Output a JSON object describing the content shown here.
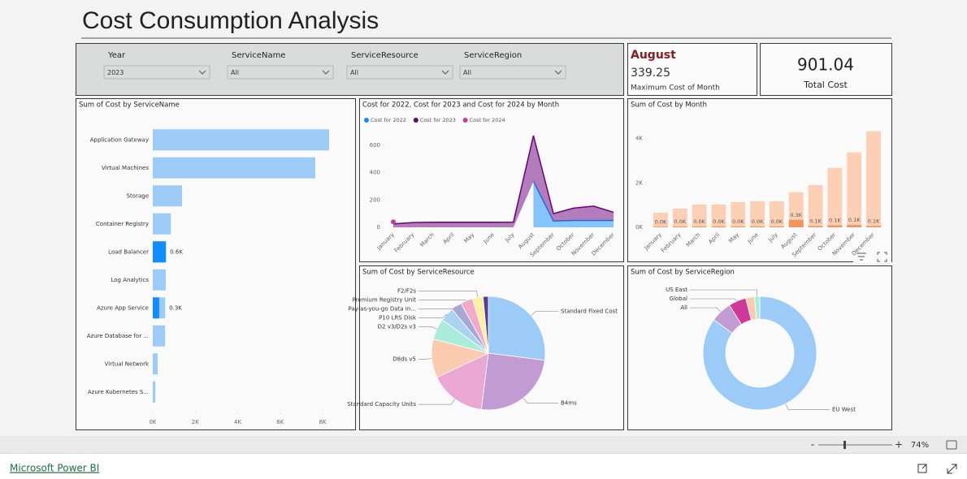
{
  "header": {
    "title": "Cost Consumption Analysis"
  },
  "slicers": [
    {
      "label": "Year",
      "value": "2023"
    },
    {
      "label": "ServiceName",
      "value": "All"
    },
    {
      "label": "ServiceResource",
      "value": "All"
    },
    {
      "label": "ServiceRegion",
      "value": "All"
    }
  ],
  "cards": [
    {
      "title": "August",
      "value": 339.25,
      "label": "Maximum Cost of Month"
    },
    {
      "value": 901.04,
      "label": "Total Cost"
    }
  ],
  "chart_data": [
    {
      "type": "bar",
      "orientation": "horizontal",
      "title": "Sum of Cost by ServiceName",
      "categories": [
        "Application Gateway",
        "Virtual Machines",
        "Storage",
        "Container Registry",
        "Load Balancer",
        "Log Analytics",
        "Azure App Service",
        "Azure Database for ...",
        "Virtual Network",
        "Azure Kubernetes S..."
      ],
      "series": [
        {
          "color": "#9ccbf8",
          "values": [
            8300,
            7650,
            1380,
            850,
            620,
            610,
            580,
            580,
            230,
            120
          ]
        },
        {
          "color": "#118dff",
          "values": [
            null,
            null,
            null,
            null,
            620,
            null,
            300,
            null,
            null,
            null
          ],
          "value_labels": [
            null,
            null,
            null,
            null,
            "0.6K",
            null,
            "0.3K",
            null,
            null,
            null
          ]
        }
      ],
      "xlim": [
        0,
        8800
      ],
      "xticks": [
        {
          "value": 0,
          "label": "0K"
        },
        {
          "value": 2000,
          "label": "2K"
        },
        {
          "value": 4000,
          "label": "4K"
        },
        {
          "value": 6000,
          "label": "6K"
        },
        {
          "value": 8000,
          "label": "8K"
        }
      ]
    },
    {
      "type": "area",
      "stacked": true,
      "title": "Cost for 2022, Cost for 2023 and Cost for 2024 by Month",
      "categories": [
        "January",
        "February",
        "March",
        "April",
        "May",
        "June",
        "July",
        "August",
        "September",
        "October",
        "November",
        "December"
      ],
      "series": [
        {
          "name": "Cost for 2022",
          "color": "#118dff",
          "values": [
            null,
            null,
            null,
            null,
            null,
            null,
            null,
            335,
            45,
            50,
            50,
            50
          ]
        },
        {
          "name": "Cost for 2023",
          "color": "#6b007b",
          "values": [
            25,
            35,
            37,
            37,
            37,
            37,
            38,
            335,
            55,
            90,
            105,
            60
          ]
        },
        {
          "name": "Cost for 2024",
          "color": "#c83d95",
          "values": [
            15,
            null,
            null,
            null,
            null,
            null,
            null,
            null,
            null,
            null,
            null,
            null
          ]
        }
      ],
      "ylim": [
        0,
        700
      ],
      "yticks": [
        0,
        200,
        400,
        600
      ],
      "legend": "top-left"
    },
    {
      "type": "bar",
      "orientation": "vertical",
      "title": "Sum of Cost by Month",
      "categories": [
        "January",
        "February",
        "March",
        "April",
        "May",
        "June",
        "July",
        "August",
        "September",
        "October",
        "November",
        "December"
      ],
      "series": [
        {
          "color": "#fdd0b5",
          "values": [
            660,
            845,
            1030,
            1030,
            1140,
            1175,
            1175,
            1580,
            1910,
            2680,
            3380,
            4330
          ]
        },
        {
          "color": "#f6935a",
          "values": [
            25,
            35,
            37,
            37,
            37,
            37,
            38,
            335,
            55,
            90,
            105,
            60
          ],
          "value_labels": [
            "0.0K",
            "0.0K",
            "0.0K",
            "0.0K",
            "0.0K",
            "0.0K",
            "0.0K",
            "0.3K",
            "0.1K",
            "0.1K",
            "0.1K",
            "0.1K"
          ]
        }
      ],
      "ylim": [
        0,
        4500
      ],
      "yticks": [
        {
          "value": 0,
          "label": "0K"
        },
        {
          "value": 2000,
          "label": "2K"
        },
        {
          "value": 4000,
          "label": "4K"
        }
      ]
    },
    {
      "type": "pie",
      "title": "Sum of Cost by ServiceResource",
      "categories": [
        "Standard Fixed Cost",
        "B4ms",
        "Standard Capacity Units",
        "D8ds v5",
        "D2 v3/D2s v3",
        "P10 LRS Disk",
        "Pay-as-you-go Data In...",
        "Premium Registry Unit",
        "F2/F2s",
        null
      ],
      "values": [
        27,
        25,
        16,
        11,
        6,
        4,
        3,
        3.5,
        3,
        1.5
      ],
      "colors": [
        "#9ccbf8",
        "#c39bd3",
        "#eaa7d4",
        "#fbcbb0",
        "#a8ecd9",
        "#a9d3ee",
        "#a7a7d4",
        "#f5a9c8",
        "#fdf0a0",
        "#5a3c9c"
      ]
    },
    {
      "type": "donut",
      "title": "Sum of Cost by ServiceRegion",
      "categories": [
        "EU West",
        "All",
        "Global",
        null,
        "US East"
      ],
      "values": [
        85,
        6,
        5,
        2.5,
        1.5
      ],
      "colors": [
        "#9ccbf8",
        "#c39bd3",
        "#d0399b",
        "#fbcbb0",
        "#a8ecd9"
      ]
    }
  ],
  "footer": {
    "zoom_out": "-",
    "zoom_in": "+",
    "zoom": "74%",
    "brand": "Microsoft Power BI"
  }
}
